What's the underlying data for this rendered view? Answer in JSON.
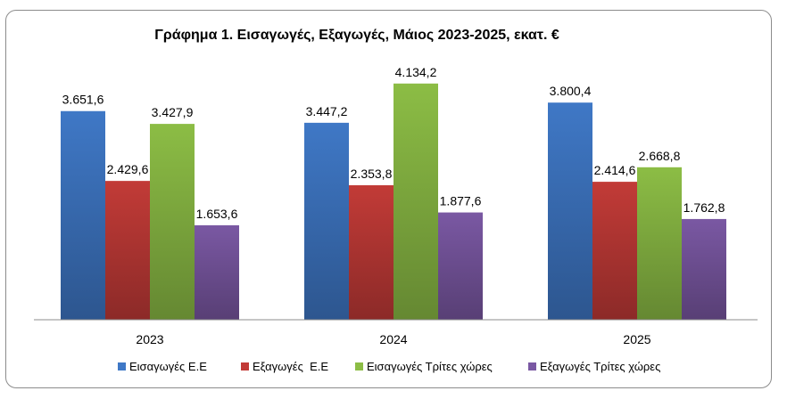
{
  "chart_data": {
    "type": "bar",
    "title": "Γράφημα 1. Εισαγωγές, Εξαγωγές, Μάιος 2023-2025, εκατ. €",
    "categories": [
      "2023",
      "2024",
      "2025"
    ],
    "series": [
      {
        "name": "Εισαγωγές Ε.Ε",
        "color": "#3f78c6",
        "values": [
          3651.6,
          3447.2,
          3800.4
        ],
        "labels": [
          "3.651,6",
          "3.447,2",
          "3.800,4"
        ]
      },
      {
        "name": "Εξαγωγές  Ε.Ε",
        "color": "#c23b37",
        "values": [
          2429.6,
          2353.8,
          2414.6
        ],
        "labels": [
          "2.429,6",
          "2.353,8",
          "2.414,6"
        ]
      },
      {
        "name": "Εισαγωγές Τρίτες χώρες",
        "color": "#8cbd45",
        "values": [
          3427.9,
          4134.2,
          2668.8
        ],
        "labels": [
          "3.427,9",
          "4.134,2",
          "2.668,8"
        ]
      },
      {
        "name": "Εξαγωγές Τρίτες χώρες",
        "color": "#7a58a3",
        "values": [
          1653.6,
          1877.6,
          1762.8
        ],
        "labels": [
          "1.653,6",
          "1.877,6",
          "1.762,8"
        ]
      }
    ],
    "ylim": [
      0,
      4500
    ],
    "grid": false,
    "legend": "bottom"
  }
}
